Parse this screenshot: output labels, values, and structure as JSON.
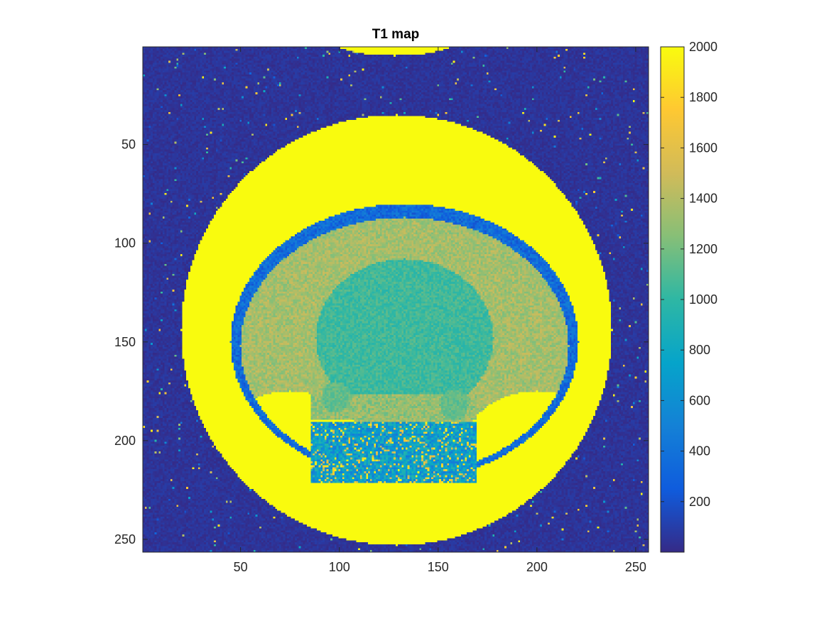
{
  "chart_data": {
    "type": "heatmap",
    "title": "T1 map",
    "xlabel": "",
    "ylabel": "",
    "image_size": [
      256,
      256
    ],
    "xlim": [
      0.5,
      256.5
    ],
    "ylim": [
      0.5,
      256.5
    ],
    "y_reversed": true,
    "x_ticks": [
      50,
      100,
      150,
      200,
      250
    ],
    "y_ticks": [
      50,
      100,
      150,
      200,
      250
    ],
    "x_tick_labels": [
      "50",
      "100",
      "150",
      "200",
      "250"
    ],
    "y_tick_labels": [
      "50",
      "100",
      "150",
      "200",
      "250"
    ],
    "colormap": "parula",
    "colorbar": {
      "range": [
        0,
        2000
      ],
      "ticks": [
        200,
        400,
        600,
        800,
        1000,
        1200,
        1400,
        1600,
        1800,
        2000
      ],
      "tick_labels": [
        "200",
        "400",
        "600",
        "800",
        "1000",
        "1200",
        "1400",
        "1600",
        "1800",
        "2000"
      ],
      "location": "right"
    },
    "regions": {
      "background": {
        "approx_value": 50,
        "description": "noise"
      },
      "outer_disk": {
        "center": [
          129,
          144
        ],
        "radius": 109,
        "approx_value": 2000
      },
      "top_cap": {
        "center": [
          128,
          0
        ],
        "approx_value": 2000
      },
      "brain_cortex": {
        "approx_value": 1350
      },
      "brain_core": {
        "approx_value": 1050
      },
      "lower_tissue": {
        "approx_value": 700
      }
    }
  },
  "colors": {
    "colormap_stops": [
      "#352a87",
      "#0f5cdd",
      "#1481d6",
      "#06a4ca",
      "#2eb7a4",
      "#87bf77",
      "#d1bb59",
      "#fec832",
      "#f9fb0e"
    ]
  }
}
